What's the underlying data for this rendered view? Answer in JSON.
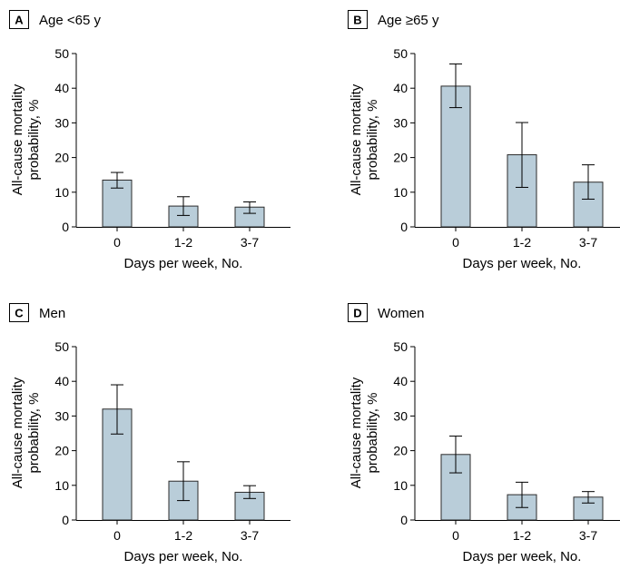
{
  "colors": {
    "bar_fill": "#b9cdd9",
    "bar_stroke": "#2b2b2b",
    "axis": "#000000"
  },
  "chart_data": [
    {
      "type": "bar",
      "panel": "A",
      "title": "Age <65 y",
      "categories": [
        "0",
        "1-2",
        "3-7"
      ],
      "values": [
        13.5,
        6.0,
        5.7
      ],
      "error_low": [
        11.2,
        3.3,
        3.9
      ],
      "error_high": [
        15.7,
        8.7,
        7.2
      ],
      "xlabel": "Days per week, No.",
      "ylabel": [
        "All-cause mortality",
        "probability, %"
      ],
      "ylim": [
        0,
        50
      ],
      "yticks": [
        0,
        10,
        20,
        30,
        40,
        50
      ]
    },
    {
      "type": "bar",
      "panel": "B",
      "title": "Age ≥65 y",
      "categories": [
        "0",
        "1-2",
        "3-7"
      ],
      "values": [
        40.6,
        20.8,
        12.9
      ],
      "error_low": [
        34.4,
        11.4,
        8.0
      ],
      "error_high": [
        47.0,
        30.1,
        17.9
      ],
      "xlabel": "Days per week, No.",
      "ylabel": [
        "All-cause mortality",
        "probability, %"
      ],
      "ylim": [
        0,
        50
      ],
      "yticks": [
        0,
        10,
        20,
        30,
        40,
        50
      ]
    },
    {
      "type": "bar",
      "panel": "C",
      "title": "Men",
      "categories": [
        "0",
        "1-2",
        "3-7"
      ],
      "values": [
        32.0,
        11.2,
        8.0
      ],
      "error_low": [
        24.8,
        5.6,
        6.2
      ],
      "error_high": [
        39.0,
        16.8,
        9.9
      ],
      "xlabel": "Days per week, No.",
      "ylabel": [
        "All-cause mortality",
        "probability, %"
      ],
      "ylim": [
        0,
        50
      ],
      "yticks": [
        0,
        10,
        20,
        30,
        40,
        50
      ]
    },
    {
      "type": "bar",
      "panel": "D",
      "title": "Women",
      "categories": [
        "0",
        "1-2",
        "3-7"
      ],
      "values": [
        18.9,
        7.3,
        6.6
      ],
      "error_low": [
        13.6,
        3.6,
        4.9
      ],
      "error_high": [
        24.2,
        10.9,
        8.2
      ],
      "xlabel": "Days per week, No.",
      "ylabel": [
        "All-cause mortality",
        "probability, %"
      ],
      "ylim": [
        0,
        50
      ],
      "yticks": [
        0,
        10,
        20,
        30,
        40,
        50
      ]
    }
  ]
}
